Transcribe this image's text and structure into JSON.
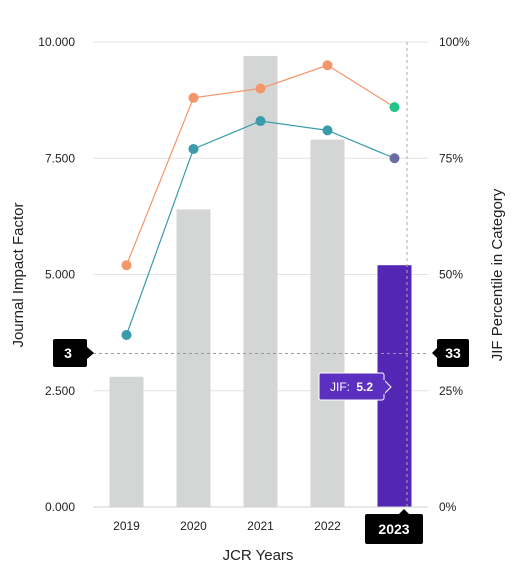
{
  "chart_data": {
    "type": "bar",
    "xlabel": "JCR Years",
    "ylabel": "Journal Impact Factor",
    "y2label": "JIF Percentile in Category",
    "categories": [
      "2019",
      "2020",
      "2021",
      "2022",
      "2023"
    ],
    "ylim": [
      0,
      10
    ],
    "y_ticks": [
      "0.000",
      "2.500",
      "5.000",
      "7.500",
      "10.000"
    ],
    "y2lim": [
      0,
      100
    ],
    "y2_ticks": [
      "0%",
      "25%",
      "50%",
      "75%",
      "100%"
    ],
    "grid": true,
    "series": [
      {
        "type": "bar",
        "values": [
          2.8,
          6.4,
          9.7,
          7.9,
          5.2
        ],
        "color": "#d4d6d5",
        "highlight_color": "#5327b4",
        "highlight_index": 4
      },
      {
        "type": "line",
        "axis": "right",
        "values": [
          52,
          88,
          90,
          95,
          86
        ],
        "color": "#f4956a",
        "last_point_color": "#22c48a"
      },
      {
        "type": "line",
        "axis": "right",
        "values": [
          37,
          77,
          83,
          81,
          75
        ],
        "color": "#3a9bab",
        "last_point_color": "#6a6d9e"
      }
    ],
    "selected_category": "2023",
    "crosshair": {
      "left_label": "3",
      "right_label": "33",
      "left_value": 3.3
    },
    "tooltip": {
      "label": "JIF:",
      "value": "5.2"
    }
  }
}
